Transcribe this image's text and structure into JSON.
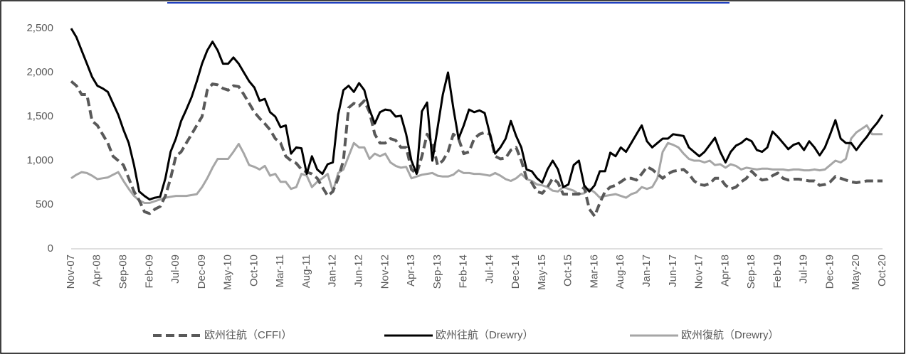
{
  "chart_data": {
    "type": "line",
    "categories": [
      "Nov-07",
      null,
      null,
      null,
      null,
      "Apr-08",
      null,
      null,
      null,
      null,
      "Sep-08",
      null,
      null,
      null,
      null,
      "Feb-09",
      null,
      null,
      null,
      null,
      "Jul-09",
      null,
      null,
      null,
      null,
      "Dec-09",
      null,
      null,
      null,
      null,
      "May-10",
      null,
      null,
      null,
      null,
      "Oct-10",
      null,
      null,
      null,
      null,
      "Mar-11",
      null,
      null,
      null,
      null,
      "Aug-11",
      null,
      null,
      null,
      null,
      "Jan-12",
      null,
      null,
      null,
      null,
      "Jun-12",
      null,
      null,
      null,
      null,
      "Nov-12",
      null,
      null,
      null,
      null,
      "Apr-13",
      null,
      null,
      null,
      null,
      "Sep-13",
      null,
      null,
      null,
      null,
      "Feb-14",
      null,
      null,
      null,
      null,
      "Jul-14",
      null,
      null,
      null,
      null,
      "Dec-14",
      null,
      null,
      null,
      null,
      "May-15",
      null,
      null,
      null,
      null,
      "Oct-15",
      null,
      null,
      null,
      null,
      "Mar-16",
      null,
      null,
      null,
      null,
      "Aug-16",
      null,
      null,
      null,
      null,
      "Jan-17",
      null,
      null,
      null,
      null,
      "Jun-17",
      null,
      null,
      null,
      null,
      "Nov-17",
      null,
      null,
      null,
      null,
      "Apr-18",
      null,
      null,
      null,
      null,
      "Sep-18",
      null,
      null,
      null,
      null,
      "Feb-19",
      null,
      null,
      null,
      null,
      "Jul-19",
      null,
      null,
      null,
      null,
      "Dec-19",
      null,
      null,
      null,
      null,
      "May-20",
      null,
      null,
      null,
      null,
      "Oct-20"
    ],
    "series": [
      {
        "name": "欧州往航（CFFI）",
        "color": "#595959",
        "dash": true,
        "values": [
          1900,
          1850,
          1750,
          1750,
          1450,
          1400,
          1300,
          1200,
          1050,
          1000,
          950,
          800,
          650,
          550,
          420,
          400,
          450,
          480,
          600,
          800,
          1050,
          1100,
          1200,
          1300,
          1400,
          1500,
          1800,
          1870,
          1860,
          1820,
          1800,
          1850,
          1840,
          1750,
          1650,
          1550,
          1480,
          1420,
          1350,
          1250,
          1200,
          1050,
          1000,
          970,
          900,
          870,
          850,
          800,
          700,
          600,
          650,
          800,
          1000,
          1600,
          1650,
          1620,
          1680,
          1550,
          1300,
          1200,
          1200,
          1250,
          1230,
          1150,
          1150,
          900,
          850,
          1050,
          1300,
          1200,
          950,
          1000,
          1100,
          1300,
          1250,
          1080,
          1100,
          1250,
          1300,
          1320,
          1300,
          1050,
          1020,
          1030,
          1120,
          1150,
          1000,
          800,
          750,
          650,
          630,
          700,
          800,
          750,
          620,
          620,
          620,
          620,
          700,
          450,
          370,
          520,
          650,
          700,
          720,
          760,
          800,
          800,
          780,
          850,
          930,
          900,
          850,
          800,
          850,
          880,
          890,
          900,
          850,
          770,
          730,
          720,
          740,
          800,
          800,
          720,
          680,
          700,
          760,
          800,
          880,
          820,
          780,
          790,
          830,
          860,
          800,
          780,
          790,
          790,
          780,
          770,
          770,
          720,
          730,
          760,
          820,
          800,
          780,
          760,
          750,
          760,
          770,
          770,
          770,
          770
        ]
      },
      {
        "name": "欧州往航（Drewry）",
        "color": "#000000",
        "dash": false,
        "values": [
          2500,
          2400,
          2250,
          2100,
          1950,
          1850,
          1820,
          1780,
          1650,
          1520,
          1350,
          1200,
          950,
          650,
          600,
          560,
          580,
          590,
          800,
          1100,
          1250,
          1450,
          1580,
          1720,
          1900,
          2100,
          2250,
          2350,
          2250,
          2100,
          2100,
          2170,
          2100,
          2000,
          1900,
          1830,
          1680,
          1700,
          1550,
          1500,
          1380,
          1400,
          1080,
          1150,
          1140,
          850,
          1050,
          900,
          850,
          960,
          980,
          1520,
          1800,
          1850,
          1780,
          1880,
          1800,
          1580,
          1420,
          1550,
          1580,
          1570,
          1500,
          1510,
          1300,
          1000,
          850,
          1560,
          1660,
          1000,
          1370,
          1750,
          2000,
          1600,
          1250,
          1400,
          1580,
          1550,
          1570,
          1540,
          1300,
          1080,
          1150,
          1250,
          1450,
          1280,
          1150,
          900,
          880,
          800,
          750,
          900,
          1000,
          900,
          700,
          730,
          950,
          1000,
          720,
          650,
          720,
          880,
          880,
          1090,
          1050,
          1150,
          1100,
          1200,
          1300,
          1400,
          1220,
          1150,
          1200,
          1250,
          1250,
          1300,
          1290,
          1280,
          1150,
          1100,
          1050,
          1100,
          1180,
          1260,
          1100,
          980,
          1100,
          1170,
          1200,
          1250,
          1220,
          1120,
          1100,
          1150,
          1330,
          1270,
          1200,
          1130,
          1180,
          1200,
          1120,
          1220,
          1150,
          1060,
          1150,
          1300,
          1460,
          1250,
          1200,
          1200,
          1120,
          1200,
          1270,
          1360,
          1430,
          1520
        ]
      },
      {
        "name": "欧州復航（Drewry）",
        "color": "#a6a6a6",
        "dash": false,
        "values": [
          800,
          840,
          870,
          860,
          830,
          790,
          800,
          810,
          840,
          870,
          770,
          680,
          600,
          550,
          520,
          520,
          540,
          560,
          580,
          590,
          600,
          600,
          600,
          610,
          620,
          700,
          800,
          920,
          1020,
          1020,
          1020,
          1100,
          1190,
          1080,
          950,
          930,
          900,
          940,
          830,
          850,
          760,
          760,
          680,
          700,
          850,
          830,
          700,
          760,
          800,
          850,
          650,
          860,
          900,
          1050,
          1200,
          1150,
          1150,
          1020,
          1080,
          1050,
          1080,
          980,
          940,
          920,
          930,
          800,
          820,
          840,
          850,
          860,
          830,
          820,
          820,
          840,
          890,
          860,
          860,
          850,
          850,
          840,
          830,
          860,
          830,
          790,
          770,
          800,
          850,
          790,
          770,
          730,
          720,
          700,
          660,
          650,
          700,
          680,
          660,
          620,
          630,
          680,
          640,
          580,
          600,
          610,
          620,
          600,
          580,
          620,
          640,
          700,
          680,
          700,
          800,
          1100,
          1200,
          1180,
          1150,
          1080,
          1020,
          1000,
          1000,
          980,
          1000,
          950,
          960,
          920,
          960,
          940,
          900,
          920,
          910,
          900,
          910,
          910,
          900,
          900,
          900,
          890,
          900,
          900,
          890,
          890,
          900,
          890,
          900,
          950,
          1000,
          980,
          1020,
          1250,
          1320,
          1360,
          1400,
          1300,
          1300,
          1300
        ]
      }
    ],
    "ylim": [
      0,
      2500
    ],
    "yticks": [
      0,
      {
        "value": 500,
        "label": "500"
      },
      {
        "value": 1000,
        "label": "1,000"
      },
      {
        "value": 1500,
        "label": "1,500"
      },
      {
        "value": 2000,
        "label": "2,000"
      },
      {
        "value": 2500,
        "label": "2,500"
      }
    ],
    "grid": false
  }
}
